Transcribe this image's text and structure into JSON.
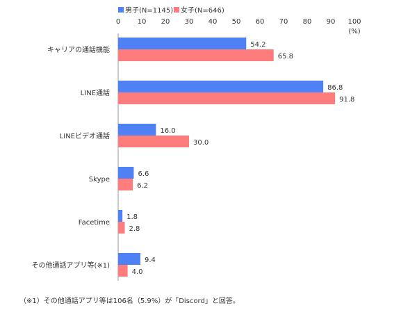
{
  "chart_data": {
    "type": "bar",
    "orientation": "horizontal",
    "categories": [
      "キャリアの通話機能",
      "LINE通話",
      "LINEビデオ通話",
      "Skype",
      "Facetime",
      "その他通話アプリ等(※1)"
    ],
    "series": [
      {
        "name": "男子(N=1145)",
        "values": [
          54.2,
          86.8,
          16.0,
          6.6,
          1.8,
          9.4
        ],
        "labels": [
          "54.2",
          "86.8",
          "16.0",
          "6.6",
          "1.8",
          "9.4"
        ],
        "color": "#4f81f5"
      },
      {
        "name": "女子(N=646)",
        "values": [
          65.8,
          91.8,
          30.0,
          6.2,
          2.8,
          4.0
        ],
        "labels": [
          "65.8",
          "91.8",
          "30.0",
          "6.2",
          "2.8",
          "4.0"
        ],
        "color": "#ff7c7c"
      }
    ],
    "xlim": [
      0,
      100
    ],
    "x_ticks": [
      0,
      10,
      20,
      30,
      40,
      50,
      60,
      70,
      80,
      90,
      100
    ],
    "x_unit": "(%)",
    "grid": false,
    "legend_position": "top"
  },
  "footnote": "（※1）その他通話アプリ等は106名（5.9%）が「Discord」と回答。"
}
